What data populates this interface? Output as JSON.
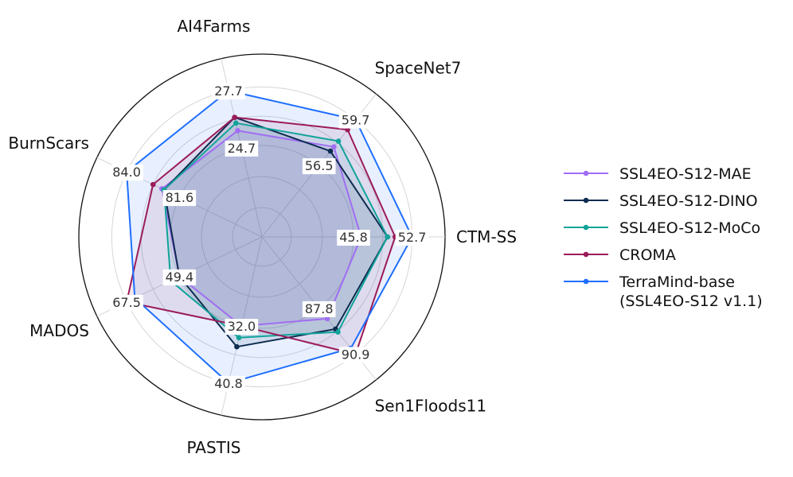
{
  "chart_data": {
    "type": "radar",
    "axes": [
      {
        "name": "CTM-SS",
        "min": 45.8,
        "max": 52.7,
        "inner_tick": "45.8",
        "outer_tick": "52.7"
      },
      {
        "name": "SpaceNet7",
        "min": 56.5,
        "max": 59.7,
        "inner_tick": "56.5",
        "outer_tick": "59.7"
      },
      {
        "name": "AI4Farms",
        "min": 24.7,
        "max": 27.7,
        "inner_tick": "24.7",
        "outer_tick": "27.7"
      },
      {
        "name": "BurnScars",
        "min": 81.6,
        "max": 84.0,
        "inner_tick": "81.6",
        "outer_tick": "84.0"
      },
      {
        "name": "MADOS",
        "min": 49.4,
        "max": 67.5,
        "inner_tick": "49.4",
        "outer_tick": "67.5"
      },
      {
        "name": "PASTIS",
        "min": 32.0,
        "max": 40.8,
        "inner_tick": "32.0",
        "outer_tick": "40.8"
      },
      {
        "name": "Sen1Floods11",
        "min": 87.8,
        "max": 90.9,
        "inner_tick": "87.8",
        "outer_tick": "90.9"
      }
    ],
    "series": [
      {
        "name": "SSL4EO-S12-MAE",
        "color": "#a06ef2",
        "values": [
          46.7,
          57.8,
          25.6,
          82.4,
          49.4,
          32.0,
          88.5
        ]
      },
      {
        "name": "SSL4EO-S12-DINO",
        "color": "#0d2c4f",
        "values": [
          49.8,
          57.5,
          26.3,
          82.3,
          49.4,
          35.2,
          89.2
        ]
      },
      {
        "name": "SSL4EO-S12-MoCo",
        "color": "#12a39a",
        "values": [
          49.8,
          58.2,
          26.0,
          82.3,
          52.4,
          33.8,
          89.4
        ]
      },
      {
        "name": "CROMA",
        "color": "#9b1b5a",
        "values": [
          50.7,
          59.0,
          26.3,
          82.8,
          67.5,
          32.0,
          90.9
        ]
      },
      {
        "name": "TerraMind-base\n(SSL4EO-S12 v1.1)",
        "color": "#1f6fff",
        "values": [
          52.7,
          59.7,
          27.7,
          84.0,
          64.7,
          40.8,
          90.5
        ]
      }
    ],
    "legend_position": "right",
    "grid": true
  }
}
